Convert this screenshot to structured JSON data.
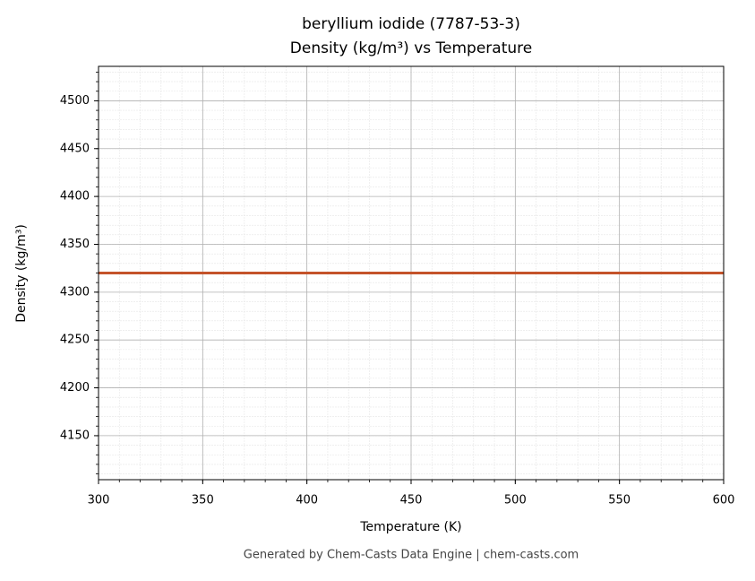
{
  "chart_data": {
    "type": "line",
    "title": [
      "beryllium iodide (7787-53-3)",
      "Density (kg/m³) vs Temperature"
    ],
    "xlabel": "Temperature (K)",
    "ylabel": "Density (kg/m³)",
    "footer": "Generated by Chem-Casts Data Engine | chem-casts.com",
    "x": [
      300,
      600
    ],
    "series": [
      {
        "color": "#c4532a",
        "values": [
          4320,
          4320
        ]
      }
    ],
    "xlim": [
      300,
      600
    ],
    "xticks": [
      300,
      350,
      400,
      450,
      500,
      550,
      600
    ],
    "ylim": [
      4104,
      4536
    ],
    "yticks": [
      4150,
      4200,
      4250,
      4300,
      4350,
      4400,
      4450,
      4500
    ],
    "grid": true,
    "minor_divisions": 5
  }
}
